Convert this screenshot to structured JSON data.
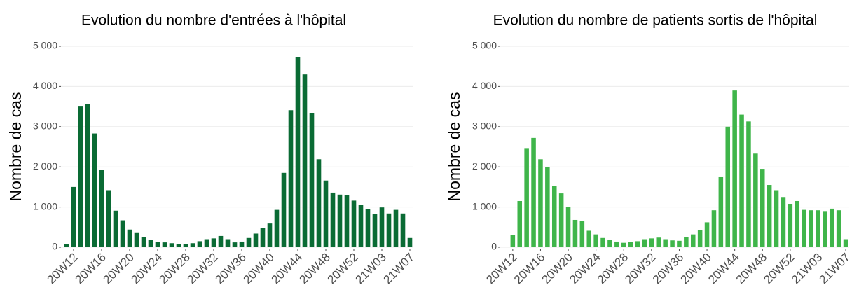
{
  "chart_data": [
    {
      "type": "bar",
      "title": "Evolution du nombre d'entrées à l'hôpital",
      "y_label": "Nombre de cas",
      "color": "#0a6b34",
      "grid": true,
      "categories": [
        null,
        "20W12",
        null,
        null,
        null,
        "20W16",
        null,
        null,
        null,
        "20W20",
        null,
        null,
        null,
        "20W24",
        null,
        null,
        null,
        "20W28",
        null,
        null,
        null,
        "20W32",
        null,
        null,
        null,
        "20W36",
        null,
        null,
        null,
        "20W40",
        null,
        null,
        null,
        "20W44",
        null,
        null,
        null,
        "20W48",
        null,
        null,
        null,
        "20W52",
        null,
        null,
        null,
        "21W03",
        null,
        null,
        null,
        "21W07"
      ],
      "values": [
        70,
        1500,
        3500,
        3570,
        2830,
        1920,
        1420,
        910,
        670,
        440,
        370,
        250,
        190,
        130,
        120,
        100,
        80,
        70,
        100,
        150,
        200,
        220,
        280,
        200,
        120,
        140,
        230,
        340,
        480,
        590,
        930,
        1850,
        3410,
        4730,
        4300,
        3330,
        2190,
        1660,
        1360,
        1310,
        1290,
        1160,
        1060,
        950,
        830,
        990,
        840,
        930,
        840,
        230
      ],
      "ylim": [
        0,
        5000
      ],
      "yticks": [
        0,
        {
          "value": 1000,
          "label": "1 000"
        },
        {
          "value": 2000,
          "label": "2 000"
        },
        {
          "value": 3000,
          "label": "3 000"
        },
        {
          "value": 4000,
          "label": "4 000"
        },
        {
          "value": 5000,
          "label": "5 000"
        }
      ]
    },
    {
      "type": "bar",
      "title": "Evolution du nombre de patients sortis de l'hôpital",
      "y_label": "Nombre de cas",
      "color": "#3fb54a",
      "grid": true,
      "categories": [
        null,
        "20W12",
        null,
        null,
        null,
        "20W16",
        null,
        null,
        null,
        "20W20",
        null,
        null,
        null,
        "20W24",
        null,
        null,
        null,
        "20W28",
        null,
        null,
        null,
        "20W32",
        null,
        null,
        null,
        "20W36",
        null,
        null,
        null,
        "20W40",
        null,
        null,
        null,
        "20W44",
        null,
        null,
        null,
        "20W48",
        null,
        null,
        null,
        "20W52",
        null,
        null,
        null,
        "21W03",
        null,
        null,
        null,
        "21W07"
      ],
      "values": [
        10,
        310,
        1150,
        2450,
        2720,
        2190,
        2000,
        1520,
        1340,
        1000,
        680,
        650,
        410,
        320,
        230,
        180,
        140,
        110,
        130,
        150,
        200,
        220,
        240,
        200,
        170,
        160,
        250,
        320,
        430,
        620,
        920,
        1760,
        3000,
        3900,
        3300,
        3130,
        2330,
        1950,
        1550,
        1420,
        1250,
        1080,
        1150,
        930,
        920,
        920,
        900,
        960,
        920,
        200
      ],
      "ylim": [
        0,
        5000
      ],
      "yticks": [
        0,
        {
          "value": 1000,
          "label": "1 000"
        },
        {
          "value": 2000,
          "label": "2 000"
        },
        {
          "value": 3000,
          "label": "3 000"
        },
        {
          "value": 4000,
          "label": "4 000"
        },
        {
          "value": 5000,
          "label": "5 000"
        }
      ]
    }
  ]
}
